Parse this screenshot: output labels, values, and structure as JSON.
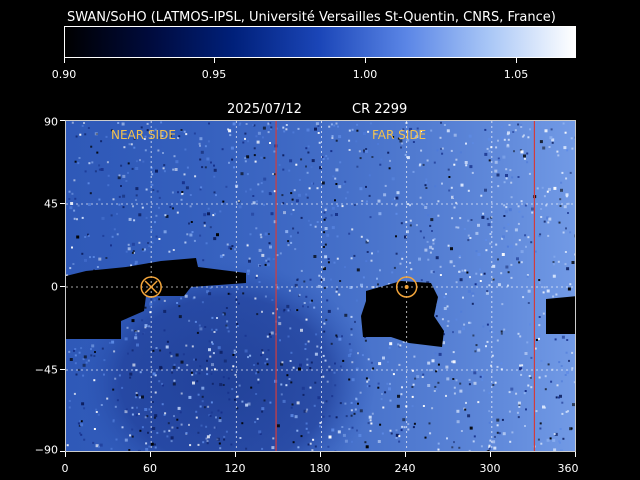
{
  "header": {
    "credit": "SWAN/SoHO (LATMOS-IPSL, Université Versailles St-Quentin, CNRS, France)"
  },
  "colorbar": {
    "labels": [
      "0.90",
      "0.95",
      "1.00",
      "1.05"
    ],
    "min": 0.9,
    "max": 1.07,
    "colors": [
      "#000000",
      "#000b3e",
      "#00207a",
      "#1b46b8",
      "#5b86e6",
      "#a8c6f6",
      "#ffffff"
    ]
  },
  "map": {
    "date": "2025/07/12",
    "carrington": "CR 2299",
    "near_side_label": "NEAR SIDE",
    "far_side_label": "FAR SIDE",
    "near_side_center_lon": 60,
    "far_side_center_lon": 240,
    "meridian_lines_lon": [
      148,
      330
    ],
    "colors": {
      "base": "#2f59b8",
      "meridian": "#d23c3c",
      "marker": "#f2a43a",
      "grid": "#ffffff"
    },
    "y_ticks": [
      "90",
      "45",
      "0",
      "−45",
      "−90"
    ],
    "x_ticks": [
      "0",
      "60",
      "120",
      "180",
      "240",
      "300",
      "360"
    ]
  }
}
